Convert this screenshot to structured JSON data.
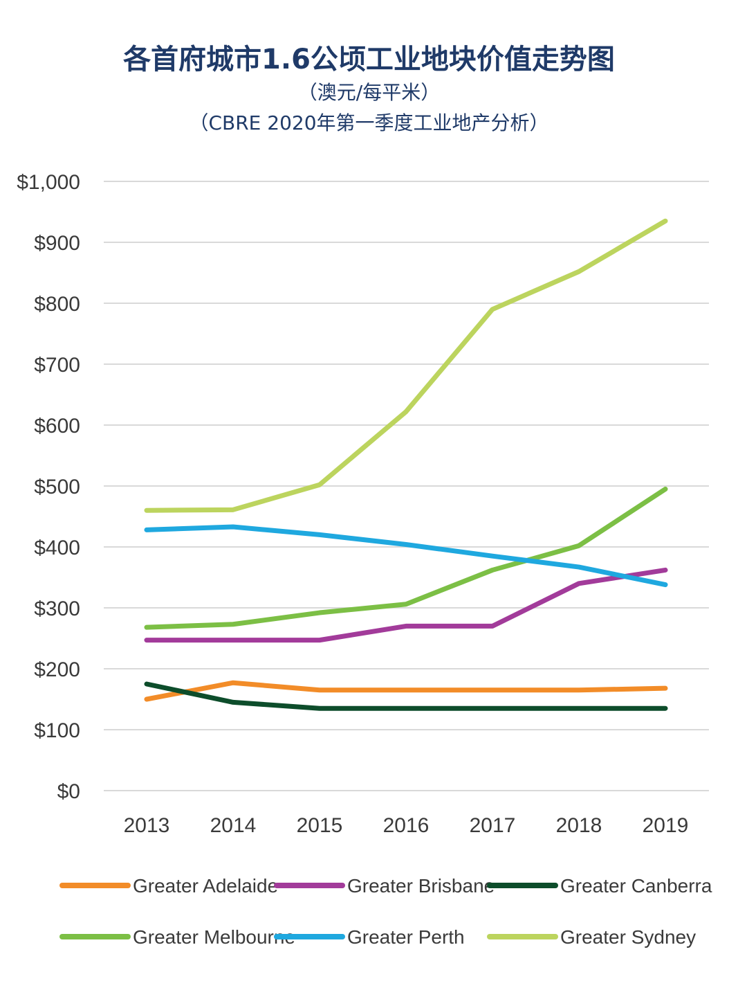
{
  "chart_data": {
    "type": "line",
    "title": "各首府城市1.6公顷工业地块价值走势图",
    "subtitle": "（澳元/每平米）",
    "source": "（CBRE 2020年第一季度工业地产分析）",
    "x": [
      "2013",
      "2014",
      "2015",
      "2016",
      "2017",
      "2018",
      "2019"
    ],
    "y_ticks": [
      "$0",
      "$100",
      "$200",
      "$300",
      "$400",
      "$500",
      "$600",
      "$700",
      "$800",
      "$900",
      "$1,000"
    ],
    "ylim": [
      0,
      1000
    ],
    "grid": true,
    "legend_position": "bottom",
    "series": [
      {
        "name": "Greater Adelaide",
        "color": "#f28c28",
        "values": [
          150,
          177,
          165,
          165,
          165,
          165,
          168
        ]
      },
      {
        "name": "Greater Brisbane",
        "color": "#a23b9a",
        "values": [
          247,
          247,
          247,
          270,
          270,
          340,
          362
        ]
      },
      {
        "name": "Greater Canberra",
        "color": "#0d4d2b",
        "values": [
          175,
          145,
          135,
          135,
          135,
          135,
          135
        ]
      },
      {
        "name": "Greater Melbourne",
        "color": "#7cbf45",
        "values": [
          268,
          273,
          292,
          306,
          362,
          402,
          495
        ]
      },
      {
        "name": "Greater Perth",
        "color": "#1fa8df",
        "values": [
          428,
          433,
          420,
          404,
          385,
          367,
          338
        ]
      },
      {
        "name": "Greater Sydney",
        "color": "#bcd45e",
        "values": [
          460,
          461,
          502,
          622,
          790,
          852,
          935
        ]
      }
    ]
  }
}
